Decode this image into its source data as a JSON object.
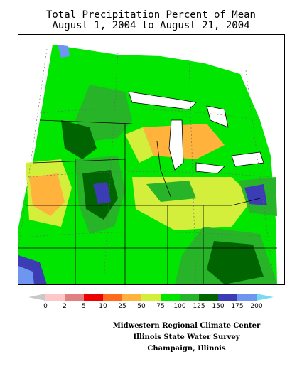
{
  "title_line1": "Total Precipitation Percent of Mean",
  "title_line2": "August 1, 2004 to August 21, 2004",
  "legend": {
    "labels": [
      "0",
      "2",
      "5",
      "10",
      "25",
      "50",
      "75",
      "100",
      "125",
      "150",
      "175",
      "200"
    ],
    "colors": [
      "#c8c8c8",
      "#ffc8c8",
      "#e08080",
      "#ee0000",
      "#ff6a1e",
      "#ffb23c",
      "#d4ee3c",
      "#00e600",
      "#28b428",
      "#006400",
      "#3c3cb4",
      "#6e96f0",
      "#78dcf0"
    ]
  },
  "credits": {
    "line1": "Midwestern Regional Climate Center",
    "line2": "Illinois State Water Survey",
    "line3": "Champaign, Illinois"
  },
  "colors": {
    "land_white": "#ffffff",
    "border": "#000000"
  }
}
